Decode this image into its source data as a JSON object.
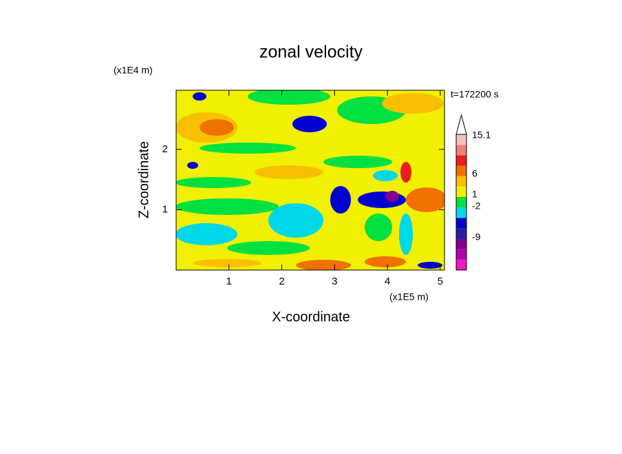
{
  "chart_data": {
    "type": "contour",
    "title": "zonal velocity",
    "x_label": "X-coordinate",
    "y_label": "Z-coordinate",
    "x_unit": "(x1E5 m)",
    "y_unit": "(x1E4 m)",
    "time_label": "t=172200 s",
    "xlim": [
      0,
      5.08
    ],
    "ylim": [
      0,
      2.98
    ],
    "xticks": [
      1,
      2,
      3,
      4,
      5
    ],
    "yticks": [
      1,
      2
    ],
    "colorbar_colors": [
      "#f018c0",
      "#b000b0",
      "#800090",
      "#2020a0",
      "#0000d0",
      "#00d8e8",
      "#00e040",
      "#f0f000",
      "#f8c000",
      "#f07000",
      "#e82020",
      "#f08080",
      "#f4c0c0"
    ],
    "colorbar_ticks": [
      15.1,
      6,
      1,
      -2,
      -9
    ]
  }
}
